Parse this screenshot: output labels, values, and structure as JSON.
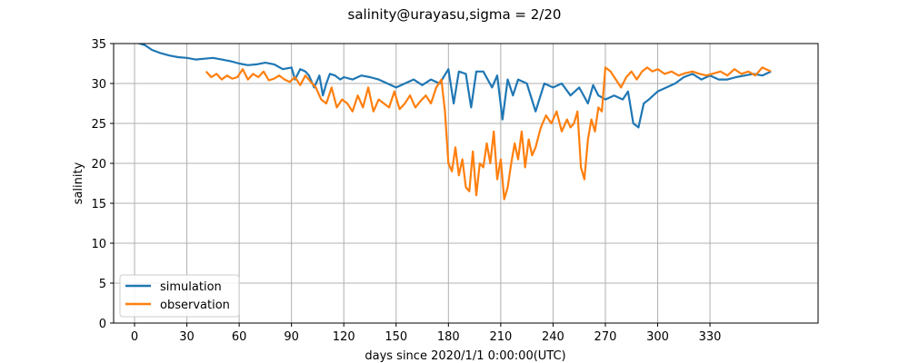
{
  "chart_data": {
    "type": "line",
    "title": "salinity@urayasu,sigma = 2/20",
    "xlabel": "days since 2020/1/1 0:00:00(UTC)",
    "ylabel": "salinity",
    "xlim": [
      -12,
      392
    ],
    "ylim": [
      0,
      35
    ],
    "xticks": [
      0,
      30,
      60,
      90,
      120,
      150,
      180,
      210,
      240,
      270,
      300,
      330
    ],
    "yticks": [
      0,
      5,
      10,
      15,
      20,
      25,
      30,
      35
    ],
    "grid": true,
    "legend_position": "lower-left",
    "series": [
      {
        "name": "simulation",
        "color": "#1f77b4",
        "x": [
          0,
          3,
          6,
          10,
          15,
          20,
          25,
          30,
          35,
          40,
          45,
          50,
          55,
          60,
          65,
          70,
          75,
          80,
          85,
          90,
          92,
          95,
          98,
          100,
          103,
          106,
          108,
          110,
          112,
          115,
          118,
          120,
          125,
          130,
          135,
          140,
          145,
          150,
          155,
          160,
          165,
          170,
          175,
          180,
          183,
          186,
          190,
          193,
          196,
          200,
          205,
          208,
          211,
          214,
          217,
          220,
          225,
          230,
          235,
          240,
          245,
          250,
          255,
          260,
          263,
          266,
          270,
          275,
          280,
          283,
          286,
          289,
          292,
          295,
          300,
          305,
          310,
          315,
          320,
          325,
          330,
          335,
          340,
          345,
          350,
          355,
          360,
          365
        ],
        "y": [
          35.2,
          35.0,
          34.8,
          34.2,
          33.8,
          33.5,
          33.3,
          33.2,
          33.0,
          33.1,
          33.2,
          33.0,
          32.8,
          32.5,
          32.3,
          32.4,
          32.6,
          32.4,
          31.8,
          32.0,
          30.5,
          31.8,
          31.5,
          31.0,
          29.5,
          31.0,
          28.5,
          30.0,
          31.2,
          31.0,
          30.5,
          30.8,
          30.5,
          31.0,
          30.8,
          30.5,
          30.0,
          29.5,
          30.0,
          30.5,
          29.8,
          30.5,
          30.0,
          31.8,
          27.5,
          31.5,
          31.2,
          27.0,
          31.5,
          31.5,
          29.5,
          31.0,
          25.5,
          30.5,
          28.5,
          30.5,
          30.0,
          26.5,
          30.0,
          29.5,
          30.0,
          28.5,
          29.5,
          27.5,
          29.8,
          28.5,
          28.0,
          28.5,
          28.0,
          29.0,
          25.0,
          24.5,
          27.5,
          28.0,
          29.0,
          29.5,
          30.0,
          30.8,
          31.2,
          30.5,
          31.0,
          30.5,
          30.5,
          30.8,
          31.0,
          31.2,
          31.0,
          31.5
        ]
      },
      {
        "name": "observation",
        "color": "#ff7f0e",
        "x": [
          41,
          44,
          47,
          50,
          53,
          56,
          59,
          62,
          65,
          68,
          71,
          74,
          77,
          80,
          83,
          86,
          89,
          92,
          95,
          98,
          101,
          104,
          107,
          110,
          113,
          116,
          119,
          122,
          125,
          128,
          131,
          134,
          137,
          140,
          143,
          146,
          149,
          152,
          155,
          158,
          161,
          164,
          167,
          170,
          173,
          176,
          178,
          180,
          182,
          184,
          186,
          188,
          190,
          192,
          194,
          196,
          198,
          200,
          202,
          204,
          206,
          208,
          210,
          212,
          214,
          216,
          218,
          220,
          222,
          224,
          226,
          228,
          230,
          233,
          236,
          239,
          242,
          245,
          248,
          250,
          252,
          254,
          256,
          258,
          260,
          262,
          264,
          266,
          268,
          270,
          273,
          276,
          279,
          282,
          285,
          288,
          291,
          294,
          297,
          300,
          304,
          308,
          312,
          316,
          320,
          324,
          328,
          336,
          340,
          344,
          348,
          352,
          356,
          360,
          365
        ],
        "y": [
          31.5,
          30.8,
          31.2,
          30.5,
          31.0,
          30.6,
          30.8,
          31.8,
          30.5,
          31.2,
          30.8,
          31.5,
          30.4,
          30.6,
          31.0,
          30.5,
          30.2,
          30.8,
          29.8,
          31.0,
          30.2,
          29.5,
          28.0,
          27.5,
          29.5,
          27.0,
          28.0,
          27.5,
          26.5,
          28.5,
          27.0,
          29.5,
          26.5,
          28.0,
          27.5,
          27.0,
          29.0,
          26.8,
          27.5,
          28.5,
          27.0,
          27.8,
          28.5,
          27.5,
          29.5,
          30.5,
          26.5,
          20.0,
          19.0,
          22.0,
          18.5,
          20.5,
          17.0,
          16.5,
          21.5,
          16.0,
          20.0,
          19.5,
          22.5,
          20.0,
          24.0,
          18.0,
          20.5,
          15.5,
          17.0,
          20.0,
          22.5,
          20.5,
          24.0,
          19.5,
          23.0,
          21.0,
          22.0,
          24.5,
          26.0,
          25.0,
          26.5,
          24.0,
          25.5,
          24.5,
          25.0,
          26.5,
          19.5,
          18.0,
          23.0,
          25.5,
          24.0,
          27.0,
          26.5,
          32.0,
          31.5,
          30.5,
          29.5,
          30.8,
          31.5,
          30.5,
          31.5,
          32.0,
          31.5,
          31.8,
          31.2,
          31.5,
          31.0,
          31.3,
          31.5,
          31.2,
          31.0,
          31.5,
          31.0,
          31.8,
          31.2,
          31.5,
          31.0,
          32.0,
          31.5
        ]
      }
    ]
  }
}
